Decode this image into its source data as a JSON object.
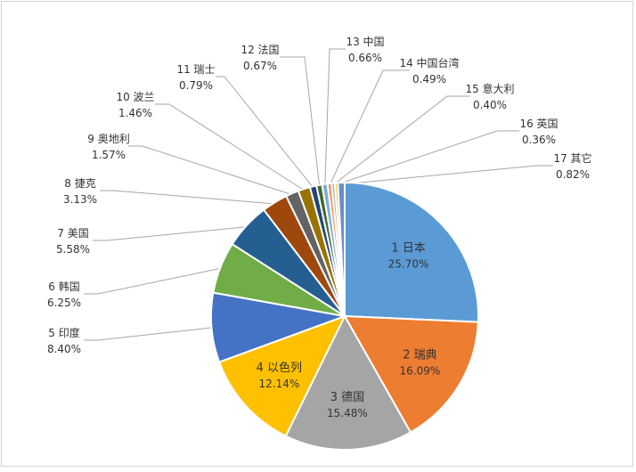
{
  "chart_data": {
    "type": "pie",
    "title": "",
    "slices": [
      {
        "label": "1 日本",
        "value": 25.7,
        "value_label": "25.70%",
        "color": "#5b9bd5"
      },
      {
        "label": "2 瑞典",
        "value": 16.09,
        "value_label": "16.09%",
        "color": "#ed7d31"
      },
      {
        "label": "3 德国",
        "value": 15.48,
        "value_label": "15.48%",
        "color": "#a5a5a5"
      },
      {
        "label": "4 以色列",
        "value": 12.14,
        "value_label": "12.14%",
        "color": "#ffc000"
      },
      {
        "label": "5 印度",
        "value": 8.4,
        "value_label": "8.40%",
        "color": "#4472c4"
      },
      {
        "label": "6 韩国",
        "value": 6.25,
        "value_label": "6.25%",
        "color": "#70ad47"
      },
      {
        "label": "7 美国",
        "value": 5.58,
        "value_label": "5.58%",
        "color": "#255e91"
      },
      {
        "label": "8 捷克",
        "value": 3.13,
        "value_label": "3.13%",
        "color": "#9e480e"
      },
      {
        "label": "9 奥地利",
        "value": 1.57,
        "value_label": "1.57%",
        "color": "#636363"
      },
      {
        "label": "10 波兰",
        "value": 1.46,
        "value_label": "1.46%",
        "color": "#997300"
      },
      {
        "label": "11 瑞士",
        "value": 0.79,
        "value_label": "0.79%",
        "color": "#264478"
      },
      {
        "label": "12 法国",
        "value": 0.67,
        "value_label": "0.67%",
        "color": "#43682b"
      },
      {
        "label": "13 中国",
        "value": 0.66,
        "value_label": "0.66%",
        "color": "#7cafdd"
      },
      {
        "label": "14 中国台湾",
        "value": 0.49,
        "value_label": "0.49%",
        "color": "#f1975a"
      },
      {
        "label": "15 意大利",
        "value": 0.4,
        "value_label": "0.40%",
        "color": "#b7b7b7"
      },
      {
        "label": "16 英国",
        "value": 0.36,
        "value_label": "0.36%",
        "color": "#ffcd33"
      },
      {
        "label": "17 其它",
        "value": 0.82,
        "value_label": "0.82%",
        "color": "#698ed0"
      }
    ],
    "inside_labels": [
      "1 日本",
      "2 瑞典",
      "3 德国",
      "4 以色列"
    ],
    "legend": "none"
  }
}
